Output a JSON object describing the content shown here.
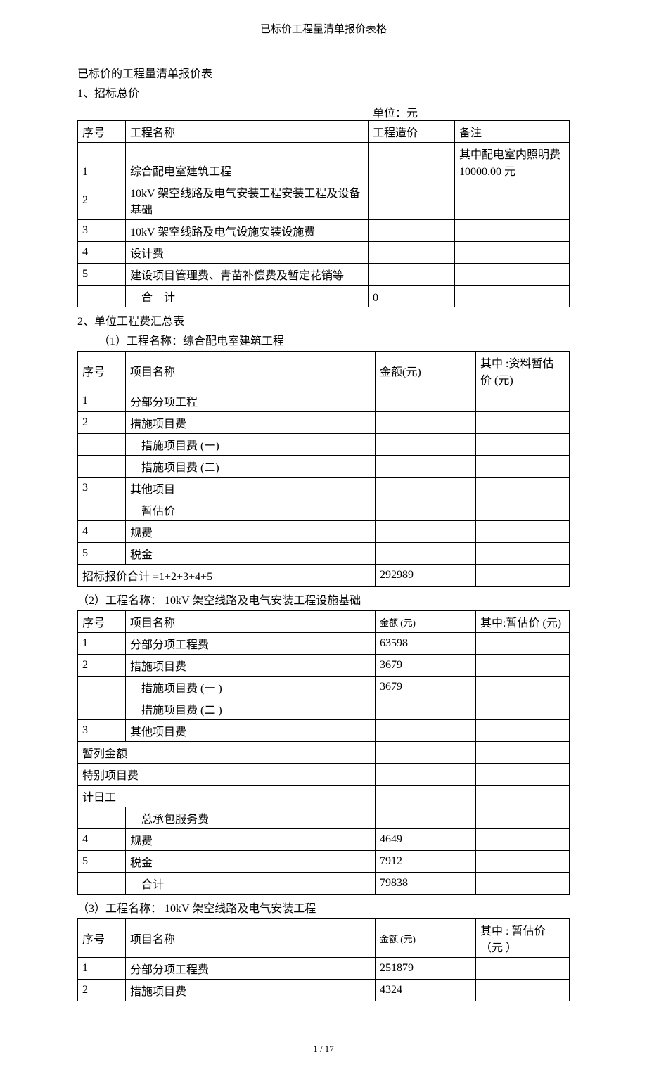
{
  "header": "已标价工程量清单报价表格",
  "title": "已标价的工程量清单报价表",
  "section1": {
    "heading": "1、招标总价",
    "unit": "单位：元",
    "cols": {
      "seq": "序号",
      "name": "工程名称",
      "amt": "工程造价",
      "note": "备注"
    },
    "rows": [
      {
        "seq": "1",
        "name": "综合配电室建筑工程",
        "amt": "",
        "note": "其中配电室内照明费 10000.00 元"
      },
      {
        "seq": "2",
        "name": "10kV 架空线路及电气安装工程安装工程及设备基础",
        "amt": "",
        "note": ""
      },
      {
        "seq": "3",
        "name": "10kV 架空线路及电气设施安装设施费",
        "amt": "",
        "note": ""
      },
      {
        "seq": "4",
        "name": "设计费",
        "amt": "",
        "note": ""
      },
      {
        "seq": "5",
        "name": "建设项目管理费、青苗补偿费及暂定花销等",
        "amt": "",
        "note": ""
      }
    ],
    "total": {
      "label": "合　计",
      "amt": "0"
    }
  },
  "section2": {
    "heading": "2、单位工程费汇总表",
    "sub1": {
      "heading": "（1）工程名称：综合配电室建筑工程",
      "cols": {
        "seq": "序号",
        "name": "项目名称",
        "amt": "金额(元)",
        "note": "其中 :资料暂估价 (元)"
      },
      "rows": [
        {
          "seq": "1",
          "name": "分部分项工程",
          "amt": "",
          "note": ""
        },
        {
          "seq": "2",
          "name": "措施项目费",
          "amt": "",
          "note": ""
        },
        {
          "seq": "",
          "name": "措施项目费 (一)",
          "amt": "",
          "note": "",
          "indent": true
        },
        {
          "seq": "",
          "name": "措施项目费 (二)",
          "amt": "",
          "note": "",
          "indent": true
        },
        {
          "seq": "3",
          "name": "其他项目",
          "amt": "",
          "note": ""
        },
        {
          "seq": "",
          "name": "暂估价",
          "amt": "",
          "note": "",
          "indent": true
        },
        {
          "seq": "4",
          "name": "规费",
          "amt": "",
          "note": ""
        },
        {
          "seq": "5",
          "name": "税金",
          "amt": "",
          "note": ""
        }
      ],
      "total": {
        "label": "招标报价合计 =1+2+3+4+5",
        "amt": "292989"
      }
    },
    "sub2": {
      "heading": "（2）工程名称： 10kV 架空线路及电气安装工程设施基础",
      "cols": {
        "seq": "序号",
        "name": "项目名称",
        "amt": "金额 (元)",
        "note": "其中:暂估价 (元)"
      },
      "rows": [
        {
          "seq": "1",
          "name": "分部分项工程费",
          "amt": "63598",
          "note": ""
        },
        {
          "seq": "2",
          "name": "措施项目费",
          "amt": "3679",
          "note": ""
        },
        {
          "seq": "",
          "name": "措施项目费 (一 )",
          "amt": "3679",
          "note": "",
          "indent": true
        },
        {
          "seq": "",
          "name": "措施项目费 (二 )",
          "amt": "",
          "note": "",
          "indent": true
        },
        {
          "seq": "3",
          "name": "其他项目费",
          "amt": "",
          "note": ""
        },
        {
          "seq": "暂列金额",
          "span": true
        },
        {
          "seq": "特别项目费",
          "span": true
        },
        {
          "seq": "计日工",
          "span": true
        },
        {
          "seq": "",
          "name": "总承包服务费",
          "amt": "",
          "note": "",
          "indent": true
        },
        {
          "seq": "4",
          "name": "规费",
          "amt": "4649",
          "note": ""
        },
        {
          "seq": "5",
          "name": "税金",
          "amt": "7912",
          "note": ""
        },
        {
          "seq": "",
          "name": "合计",
          "amt": "79838",
          "note": "",
          "indent": true
        }
      ]
    },
    "sub3": {
      "heading": "（3）工程名称： 10kV 架空线路及电气安装工程",
      "cols": {
        "seq": "序号",
        "name": "项目名称",
        "amt": "金额 (元)",
        "note": "其中 : 暂估价（元 ）"
      },
      "rows": [
        {
          "seq": "1",
          "name": "分部分项工程费",
          "amt": "251879",
          "note": ""
        },
        {
          "seq": "2",
          "name": "措施项目费",
          "amt": "4324",
          "note": ""
        }
      ]
    }
  },
  "footer": "1 / 17"
}
